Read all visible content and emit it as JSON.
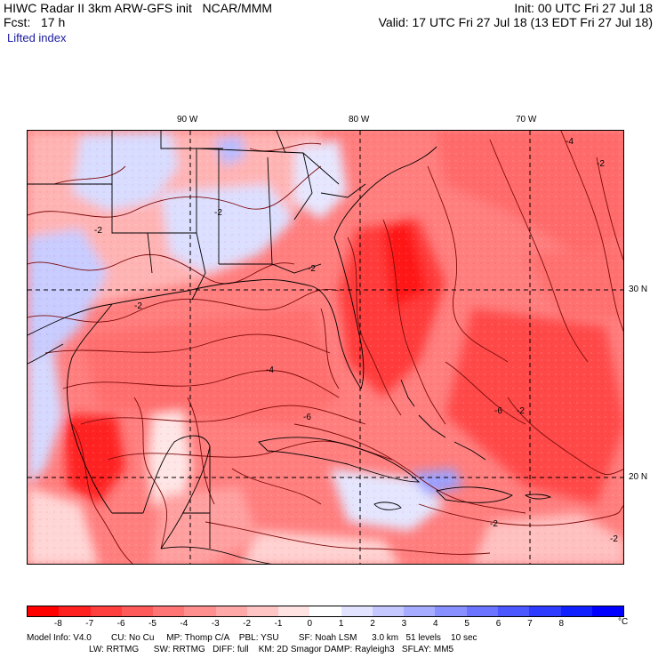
{
  "header": {
    "left_line1": "HIWC Radar II 3km ARW-GFS init   NCAR/MMM",
    "left_line2": "Fcst:   17 h",
    "right_line1": "Init: 00 UTC Fri 27 Jul 18",
    "right_line2": "Valid: 17 UTC Fri 27 Jul 18 (13 EDT Fri 27 Jul 18)",
    "field_name": "Lifted index"
  },
  "map": {
    "lon_labels": [
      "90 W",
      "80 W",
      "70 W"
    ],
    "lat_labels": [
      "30 N",
      "20 N"
    ],
    "contour_labels": [
      "-2",
      "-2",
      "-2",
      "-4",
      "-2",
      "-6",
      "-2",
      "-4",
      "-6",
      "-2",
      "-2",
      "-2"
    ]
  },
  "colorbar": {
    "labels": [
      "-8",
      "-7",
      "-6",
      "-5",
      "-4",
      "-3",
      "-2",
      "-1",
      "0",
      "1",
      "2",
      "3",
      "4",
      "5",
      "6",
      "7",
      "8"
    ],
    "unit": "°C",
    "colors": [
      "#ff0000",
      "#ff2020",
      "#ff3e3e",
      "#ff5a5a",
      "#ff7474",
      "#ff8e8e",
      "#ffa8a8",
      "#ffc4c4",
      "#ffe2e2",
      "#ffffff",
      "#e2e4ff",
      "#c4c8ff",
      "#a6acff",
      "#8890ff",
      "#6a74ff",
      "#4c58ff",
      "#2e3cff",
      "#1020ff",
      "#0000ff"
    ]
  },
  "footer": {
    "line1": "Model Info: V4.0        CU: No Cu     MP: Thomp C/A    PBL: YSU        SF: Noah LSM      3.0 km   51 levels    10 sec",
    "line2": "LW: RRTMG      SW: RRTMG   DIFF: full    KM: 2D Smagor DAMP: Rayleigh3   SFLAY: MM5"
  }
}
